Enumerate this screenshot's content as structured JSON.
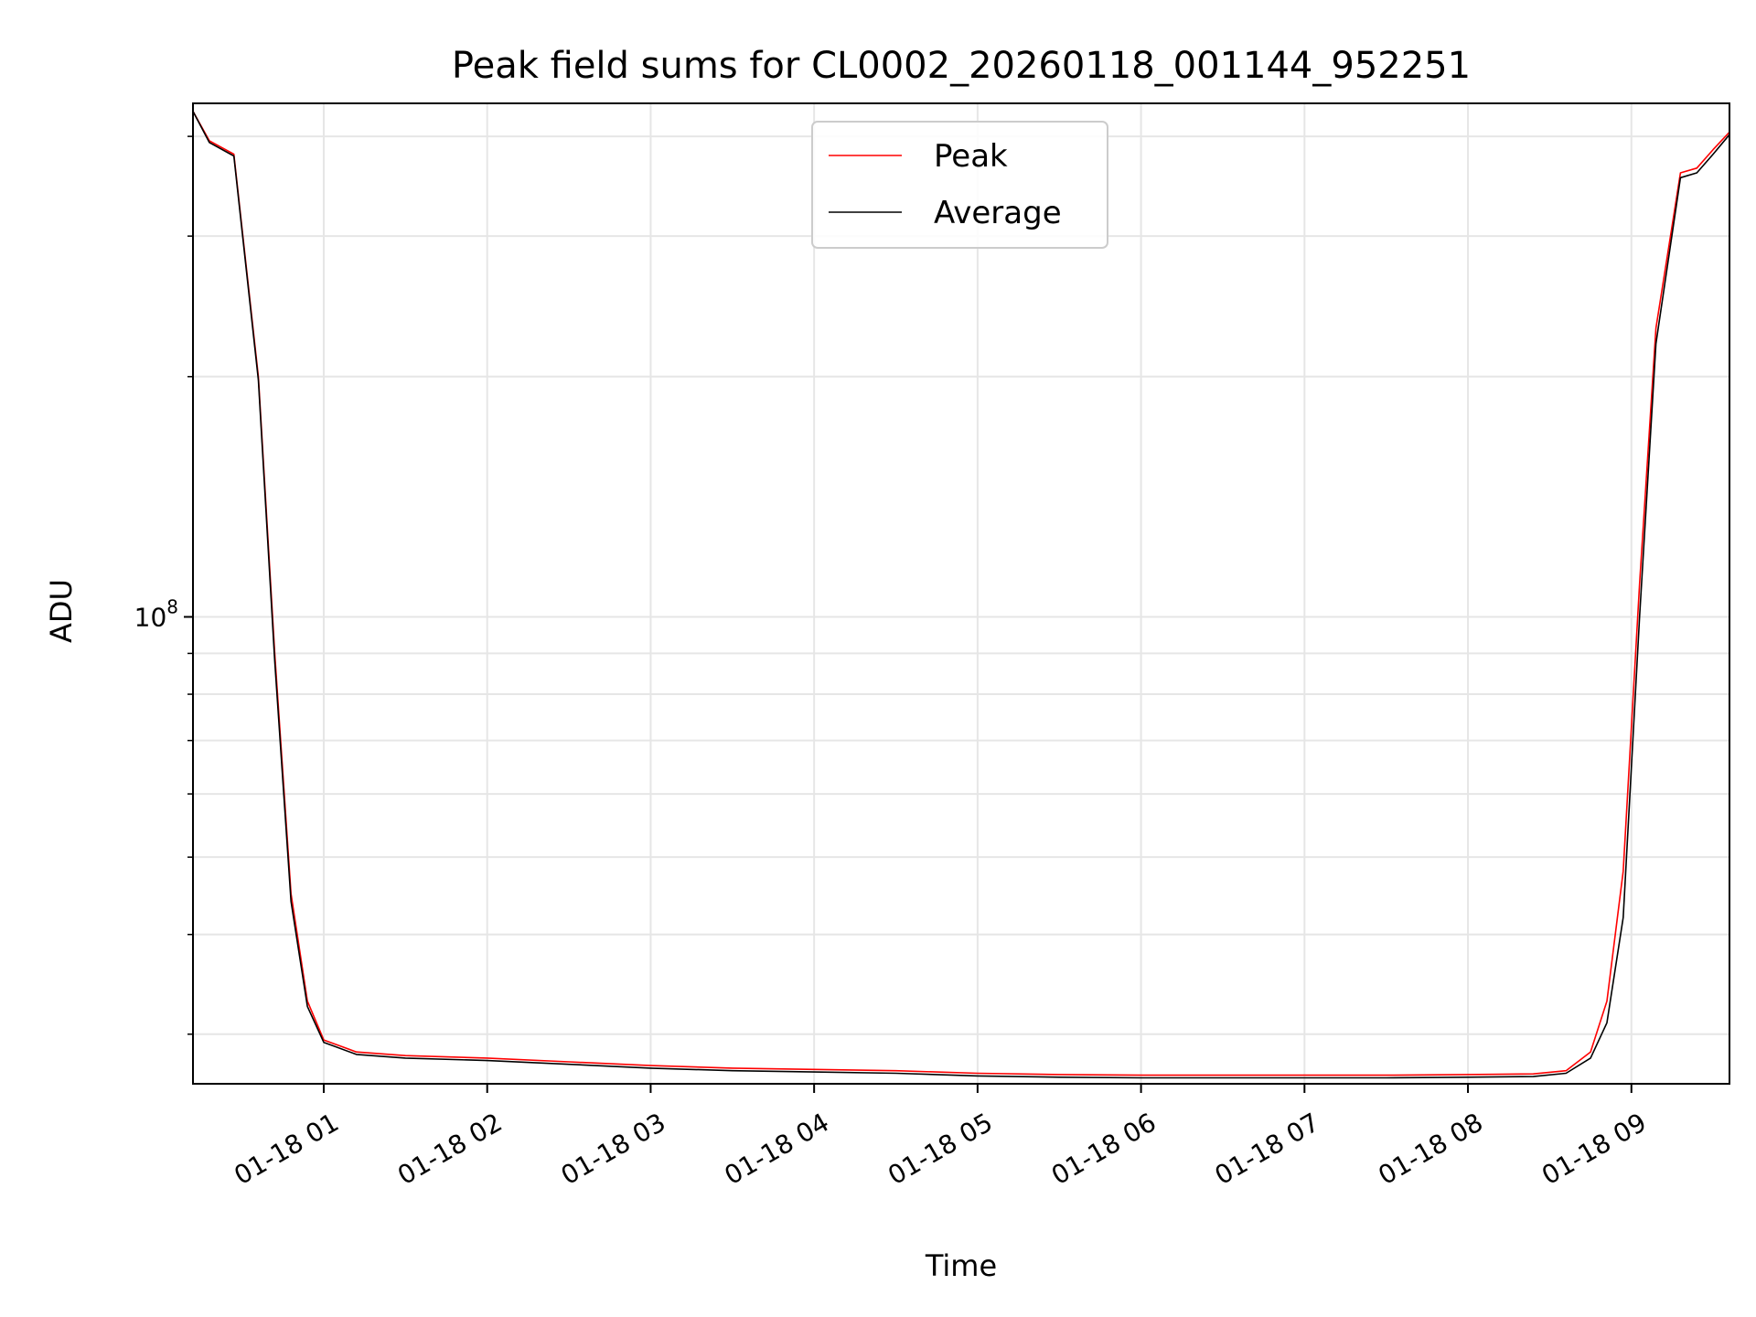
{
  "chart_data": {
    "type": "line",
    "title": "Peak field sums for CL0002_20260118_001144_952251",
    "xlabel": "Time",
    "ylabel": "ADU",
    "y_scale": "log",
    "ylim": [
      26000000,
      440000000
    ],
    "xlim_hours": [
      0.2,
      9.6
    ],
    "grid": true,
    "legend_position": "upper center",
    "x_ticks": [
      {
        "value": 1,
        "label": "01-18 01"
      },
      {
        "value": 2,
        "label": "01-18 02"
      },
      {
        "value": 3,
        "label": "01-18 03"
      },
      {
        "value": 4,
        "label": "01-18 04"
      },
      {
        "value": 5,
        "label": "01-18 05"
      },
      {
        "value": 6,
        "label": "01-18 06"
      },
      {
        "value": 7,
        "label": "01-18 07"
      },
      {
        "value": 8,
        "label": "01-18 08"
      },
      {
        "value": 9,
        "label": "01-18 09"
      }
    ],
    "y_major_ticks": [
      {
        "value": 100000000,
        "base": "10",
        "exp": "8"
      }
    ],
    "y_minor_ticks": [
      30000000,
      40000000,
      50000000,
      60000000,
      70000000,
      80000000,
      90000000,
      200000000,
      300000000,
      400000000
    ],
    "series": [
      {
        "name": "Peak",
        "color": "#ff0000",
        "x": [
          0.2,
          0.3,
          0.45,
          0.6,
          0.7,
          0.8,
          0.9,
          1.0,
          1.2,
          1.5,
          2.0,
          2.5,
          3.0,
          3.5,
          4.0,
          4.5,
          5.0,
          5.5,
          6.0,
          6.5,
          7.0,
          7.5,
          8.0,
          8.4,
          8.6,
          8.75,
          8.85,
          8.95,
          9.05,
          9.15,
          9.3,
          9.4,
          9.5,
          9.6
        ],
        "y": [
          430000000,
          395000000,
          380000000,
          200000000,
          90000000,
          45000000,
          33000000,
          29500000,
          28500000,
          28200000,
          28000000,
          27700000,
          27400000,
          27200000,
          27100000,
          27000000,
          26800000,
          26700000,
          26650000,
          26650000,
          26650000,
          26650000,
          26700000,
          26750000,
          27000000,
          28500000,
          33000000,
          48000000,
          110000000,
          230000000,
          360000000,
          365000000,
          385000000,
          405000000
        ]
      },
      {
        "name": "Average",
        "color": "#000000",
        "x": [
          0.2,
          0.3,
          0.45,
          0.6,
          0.7,
          0.8,
          0.9,
          1.0,
          1.2,
          1.5,
          2.0,
          2.5,
          3.0,
          3.5,
          4.0,
          4.5,
          5.0,
          5.5,
          6.0,
          6.5,
          7.0,
          7.5,
          8.0,
          8.4,
          8.6,
          8.75,
          8.85,
          8.95,
          9.05,
          9.15,
          9.3,
          9.4,
          9.5,
          9.6
        ],
        "y": [
          430000000,
          393000000,
          378000000,
          198000000,
          88000000,
          44000000,
          32500000,
          29300000,
          28300000,
          28000000,
          27800000,
          27500000,
          27200000,
          27000000,
          26900000,
          26800000,
          26600000,
          26500000,
          26450000,
          26450000,
          26450000,
          26450000,
          26500000,
          26550000,
          26800000,
          28000000,
          31000000,
          42000000,
          100000000,
          220000000,
          355000000,
          360000000,
          380000000,
          402000000
        ]
      }
    ]
  }
}
